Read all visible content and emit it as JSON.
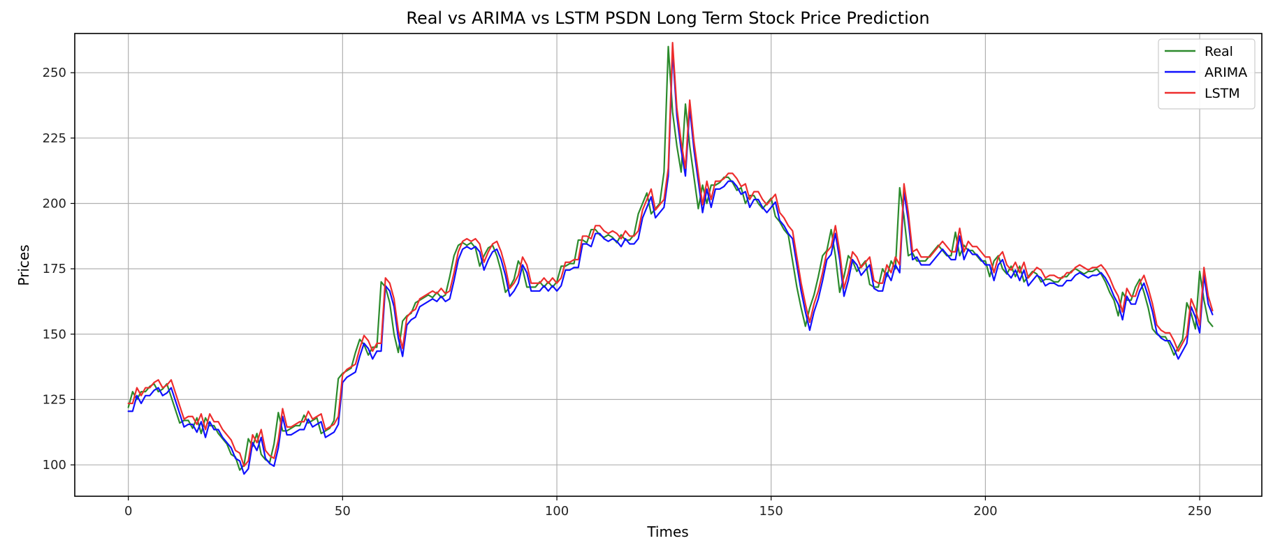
{
  "chart_data": {
    "type": "line",
    "title": "Real vs ARIMA vs LSTM PSDN Long Term Stock Price Prediction",
    "xlabel": "Times",
    "ylabel": "Prices",
    "xlim": [
      -12.5,
      264.5
    ],
    "ylim": [
      88,
      265
    ],
    "xticks": [
      0,
      50,
      100,
      150,
      200,
      250
    ],
    "yticks": [
      100,
      125,
      150,
      175,
      200,
      225,
      250
    ],
    "grid": true,
    "legend_position": "top-right",
    "real_anchors": [
      [
        0,
        122
      ],
      [
        1,
        128
      ],
      [
        2,
        125
      ],
      [
        3,
        128
      ],
      [
        4,
        128
      ],
      [
        5,
        130
      ],
      [
        6,
        131
      ],
      [
        7,
        128
      ],
      [
        8,
        129
      ],
      [
        9,
        131
      ],
      [
        10,
        126
      ],
      [
        11,
        121
      ],
      [
        12,
        116
      ],
      [
        13,
        117
      ],
      [
        14,
        117
      ],
      [
        15,
        114
      ],
      [
        16,
        118
      ],
      [
        17,
        112
      ],
      [
        18,
        118
      ],
      [
        19,
        115
      ],
      [
        20,
        115
      ],
      [
        21,
        112
      ],
      [
        22,
        110
      ],
      [
        23,
        108
      ],
      [
        24,
        104
      ],
      [
        25,
        103
      ],
      [
        26,
        98
      ],
      [
        27,
        100
      ],
      [
        28,
        110
      ],
      [
        29,
        107
      ],
      [
        30,
        112
      ],
      [
        31,
        104
      ],
      [
        32,
        102
      ],
      [
        33,
        101
      ],
      [
        34,
        108
      ],
      [
        35,
        120
      ],
      [
        36,
        113
      ],
      [
        37,
        113
      ],
      [
        38,
        114
      ],
      [
        39,
        115
      ],
      [
        40,
        115
      ],
      [
        41,
        119
      ],
      [
        42,
        116
      ],
      [
        43,
        117
      ],
      [
        44,
        118
      ],
      [
        45,
        112
      ],
      [
        46,
        113
      ],
      [
        47,
        114
      ],
      [
        48,
        117
      ],
      [
        49,
        133
      ],
      [
        50,
        135
      ],
      [
        51,
        136
      ],
      [
        52,
        137
      ],
      [
        53,
        143
      ],
      [
        54,
        148
      ],
      [
        55,
        146
      ],
      [
        56,
        142
      ],
      [
        57,
        145
      ],
      [
        58,
        145
      ],
      [
        59,
        170
      ],
      [
        60,
        168
      ],
      [
        61,
        162
      ],
      [
        62,
        150
      ],
      [
        63,
        143
      ],
      [
        64,
        155
      ],
      [
        65,
        157
      ],
      [
        66,
        158
      ],
      [
        67,
        162
      ],
      [
        68,
        163
      ],
      [
        69,
        164
      ],
      [
        70,
        165
      ],
      [
        71,
        164
      ],
      [
        72,
        166
      ],
      [
        73,
        164
      ],
      [
        74,
        165
      ],
      [
        75,
        172
      ],
      [
        76,
        180
      ],
      [
        77,
        184
      ],
      [
        78,
        185
      ],
      [
        79,
        184
      ],
      [
        80,
        185
      ],
      [
        81,
        183
      ],
      [
        82,
        176
      ],
      [
        83,
        180
      ],
      [
        84,
        183
      ],
      [
        85,
        184
      ],
      [
        86,
        180
      ],
      [
        87,
        174
      ],
      [
        88,
        166
      ],
      [
        89,
        168
      ],
      [
        90,
        171
      ],
      [
        91,
        178
      ],
      [
        92,
        175
      ],
      [
        93,
        168
      ],
      [
        94,
        168
      ],
      [
        95,
        168
      ],
      [
        96,
        170
      ],
      [
        97,
        168
      ],
      [
        98,
        170
      ],
      [
        99,
        168
      ],
      [
        100,
        170
      ],
      [
        101,
        176
      ],
      [
        102,
        176
      ],
      [
        103,
        177
      ],
      [
        104,
        177
      ],
      [
        105,
        186
      ],
      [
        106,
        186
      ],
      [
        107,
        185
      ],
      [
        108,
        190
      ],
      [
        109,
        190
      ],
      [
        110,
        188
      ],
      [
        111,
        187
      ],
      [
        112,
        188
      ],
      [
        113,
        187
      ],
      [
        114,
        185
      ],
      [
        115,
        188
      ],
      [
        116,
        186
      ],
      [
        117,
        186
      ],
      [
        118,
        188
      ],
      [
        119,
        196
      ],
      [
        120,
        200
      ],
      [
        121,
        204
      ],
      [
        122,
        196
      ],
      [
        123,
        198
      ],
      [
        124,
        200
      ],
      [
        125,
        212
      ],
      [
        126,
        260
      ],
      [
        127,
        235
      ],
      [
        128,
        222
      ],
      [
        129,
        212
      ],
      [
        130,
        238
      ],
      [
        131,
        222
      ],
      [
        132,
        210
      ],
      [
        133,
        198
      ],
      [
        134,
        207
      ],
      [
        135,
        200
      ],
      [
        136,
        207
      ],
      [
        137,
        207
      ],
      [
        138,
        208
      ],
      [
        139,
        210
      ],
      [
        140,
        210
      ],
      [
        141,
        208
      ],
      [
        142,
        205
      ],
      [
        143,
        206
      ],
      [
        144,
        200
      ],
      [
        145,
        203
      ],
      [
        146,
        203
      ],
      [
        147,
        200
      ],
      [
        148,
        198
      ],
      [
        149,
        200
      ],
      [
        150,
        202
      ],
      [
        151,
        195
      ],
      [
        152,
        193
      ],
      [
        153,
        190
      ],
      [
        154,
        188
      ],
      [
        155,
        178
      ],
      [
        156,
        168
      ],
      [
        157,
        160
      ],
      [
        158,
        153
      ],
      [
        159,
        160
      ],
      [
        160,
        165
      ],
      [
        161,
        172
      ],
      [
        162,
        180
      ],
      [
        163,
        182
      ],
      [
        164,
        190
      ],
      [
        165,
        180
      ],
      [
        166,
        166
      ],
      [
        167,
        172
      ],
      [
        168,
        180
      ],
      [
        169,
        178
      ],
      [
        170,
        174
      ],
      [
        171,
        176
      ],
      [
        172,
        178
      ],
      [
        173,
        169
      ],
      [
        174,
        168
      ],
      [
        175,
        168
      ],
      [
        176,
        175
      ],
      [
        177,
        172
      ],
      [
        178,
        178
      ],
      [
        179,
        175
      ],
      [
        180,
        206
      ],
      [
        181,
        195
      ],
      [
        182,
        180
      ],
      [
        183,
        181
      ],
      [
        184,
        178
      ],
      [
        185,
        178
      ],
      [
        186,
        178
      ],
      [
        187,
        180
      ],
      [
        188,
        182
      ],
      [
        189,
        184
      ],
      [
        190,
        182
      ],
      [
        191,
        180
      ],
      [
        192,
        180
      ],
      [
        193,
        189
      ],
      [
        194,
        180
      ],
      [
        195,
        184
      ],
      [
        196,
        182
      ],
      [
        197,
        182
      ],
      [
        198,
        180
      ],
      [
        199,
        178
      ],
      [
        200,
        178
      ],
      [
        201,
        172
      ],
      [
        202,
        178
      ],
      [
        203,
        180
      ],
      [
        204,
        175
      ],
      [
        205,
        173
      ],
      [
        206,
        176
      ],
      [
        207,
        172
      ],
      [
        208,
        176
      ],
      [
        209,
        170
      ],
      [
        210,
        172
      ],
      [
        211,
        174
      ],
      [
        212,
        173
      ],
      [
        213,
        170
      ],
      [
        214,
        171
      ],
      [
        215,
        171
      ],
      [
        216,
        170
      ],
      [
        217,
        170
      ],
      [
        218,
        172
      ],
      [
        219,
        172
      ],
      [
        220,
        174
      ],
      [
        221,
        175
      ],
      [
        222,
        174
      ],
      [
        223,
        173
      ],
      [
        224,
        174
      ],
      [
        225,
        174
      ],
      [
        226,
        175
      ],
      [
        227,
        173
      ],
      [
        228,
        170
      ],
      [
        229,
        166
      ],
      [
        230,
        163
      ],
      [
        231,
        157
      ],
      [
        232,
        166
      ],
      [
        233,
        163
      ],
      [
        234,
        163
      ],
      [
        235,
        168
      ],
      [
        236,
        171
      ],
      [
        237,
        166
      ],
      [
        238,
        160
      ],
      [
        239,
        152
      ],
      [
        240,
        150
      ],
      [
        241,
        149
      ],
      [
        242,
        149
      ],
      [
        243,
        146
      ],
      [
        244,
        142
      ],
      [
        245,
        145
      ],
      [
        246,
        148
      ],
      [
        247,
        162
      ],
      [
        248,
        158
      ],
      [
        249,
        152
      ],
      [
        250,
        174
      ],
      [
        251,
        163
      ],
      [
        252,
        155
      ],
      [
        253,
        153
      ]
    ],
    "series": [
      {
        "name": "Real",
        "color": "#2b8a2b",
        "lag": 0,
        "offset": 0,
        "end_value": 153
      },
      {
        "name": "ARIMA",
        "color": "#1010ff",
        "lag": 1,
        "offset": -1.5,
        "end_value": 157.5
      },
      {
        "name": "LSTM",
        "color": "#ee2d2d",
        "lag": 1,
        "offset": 1.5,
        "end_value": 159
      }
    ]
  }
}
